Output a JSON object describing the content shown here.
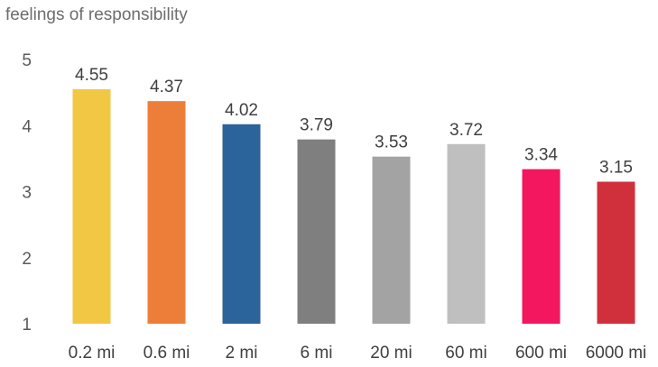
{
  "chart_data": {
    "type": "bar",
    "title": "feelings of responsibility",
    "categories": [
      "0.2 mi",
      "0.6 mi",
      "2 mi",
      "6 mi",
      "20 mi",
      "60 mi",
      "600 mi",
      "6000 mi"
    ],
    "values": [
      4.55,
      4.37,
      4.02,
      3.79,
      3.53,
      3.72,
      3.34,
      3.15
    ],
    "data_labels": [
      "4.55",
      "4.37",
      "4.02",
      "3.79",
      "3.53",
      "3.72",
      "3.34",
      "3.15"
    ],
    "colors": [
      "#f2c744",
      "#ed7e3a",
      "#2b639b",
      "#7f7f7f",
      "#a3a3a3",
      "#bfbfbf",
      "#f2175f",
      "#d0303c"
    ],
    "ylim": [
      1,
      5
    ],
    "yticks": [
      "1",
      "2",
      "3",
      "4",
      "5"
    ],
    "xlabel": "",
    "ylabel": "",
    "grid": false,
    "legend": false
  }
}
